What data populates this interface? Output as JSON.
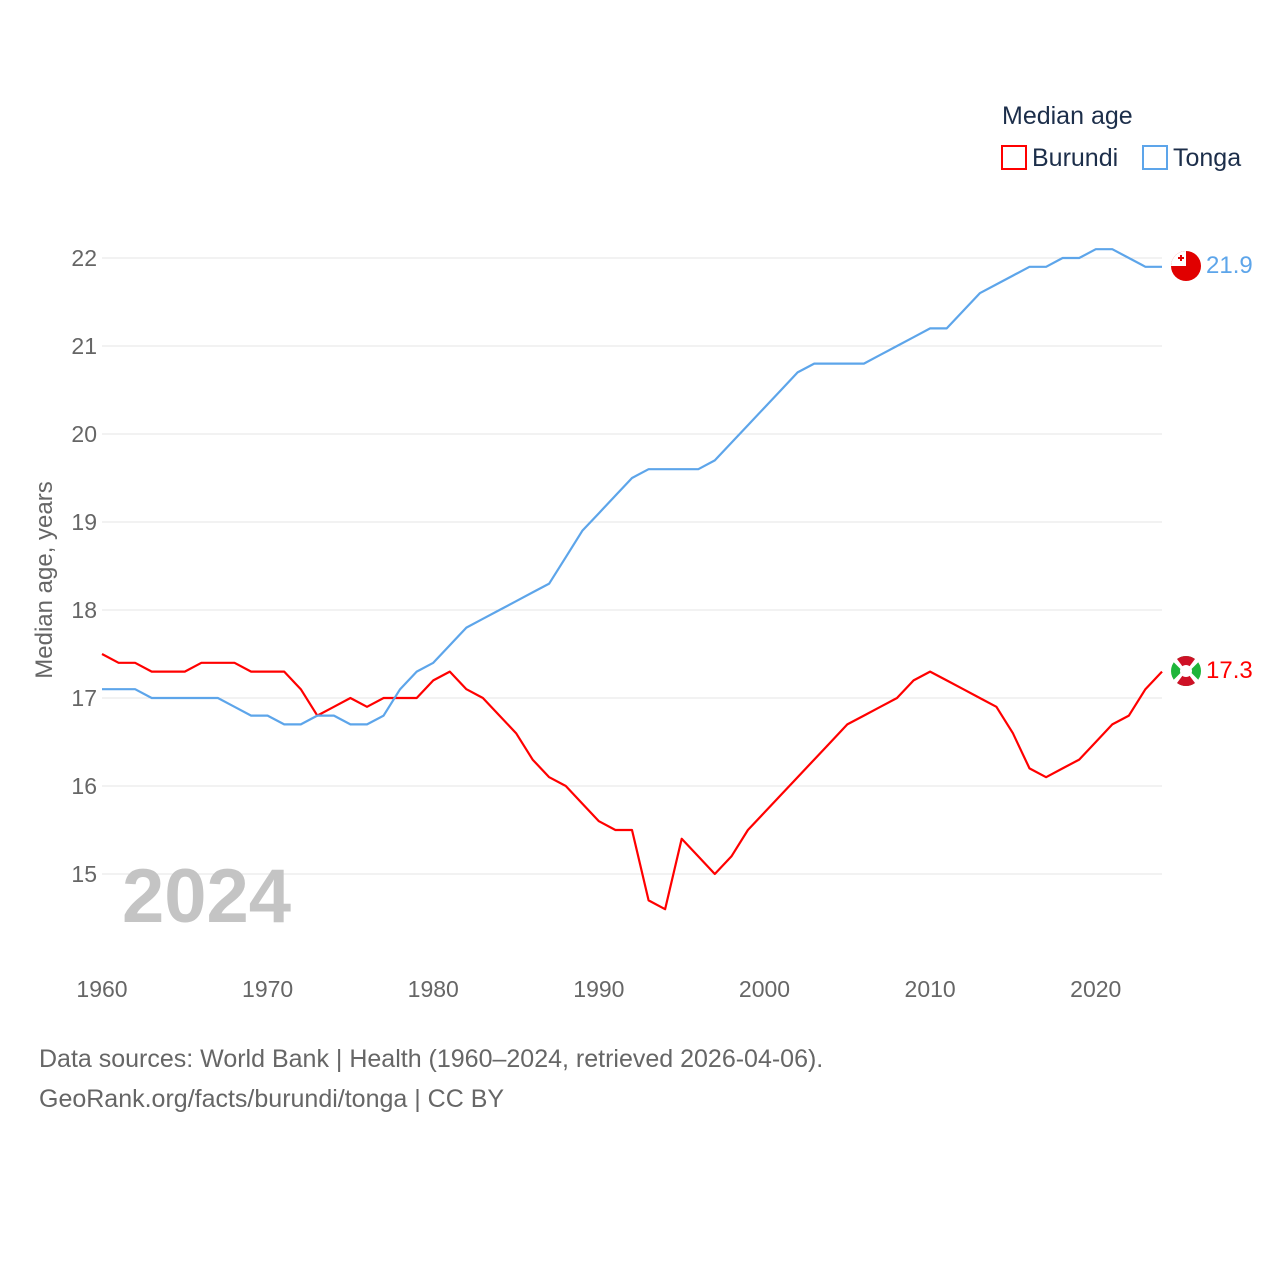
{
  "chart_data": {
    "type": "line",
    "title": "",
    "watermark_year": "2024",
    "xlabel": "",
    "ylabel": "Median age, years",
    "xlim": [
      1960,
      2024
    ],
    "ylim": [
      14.2,
      22.5
    ],
    "x_ticks": [
      1960,
      1970,
      1980,
      1990,
      2000,
      2010,
      2020
    ],
    "y_ticks": [
      15,
      16,
      17,
      18,
      19,
      20,
      21,
      22
    ],
    "grid": true,
    "legend": {
      "title": "Median age",
      "placement": "top-right"
    },
    "x": [
      1960,
      1961,
      1962,
      1963,
      1964,
      1965,
      1966,
      1967,
      1968,
      1969,
      1970,
      1971,
      1972,
      1973,
      1974,
      1975,
      1976,
      1977,
      1978,
      1979,
      1980,
      1981,
      1982,
      1983,
      1984,
      1985,
      1986,
      1987,
      1988,
      1989,
      1990,
      1991,
      1992,
      1993,
      1994,
      1995,
      1996,
      1997,
      1998,
      1999,
      2000,
      2001,
      2002,
      2003,
      2004,
      2005,
      2006,
      2007,
      2008,
      2009,
      2010,
      2011,
      2012,
      2013,
      2014,
      2015,
      2016,
      2017,
      2018,
      2019,
      2020,
      2021,
      2022,
      2023,
      2024
    ],
    "series": [
      {
        "name": "Burundi",
        "color": "#ff0000",
        "end_label": "17.3",
        "values": [
          17.5,
          17.4,
          17.4,
          17.3,
          17.3,
          17.3,
          17.4,
          17.4,
          17.4,
          17.3,
          17.3,
          17.3,
          17.1,
          16.8,
          16.9,
          17.0,
          16.9,
          17.0,
          17.0,
          17.0,
          17.2,
          17.3,
          17.1,
          17.0,
          16.8,
          16.6,
          16.3,
          16.1,
          16.0,
          15.8,
          15.6,
          15.5,
          15.5,
          14.7,
          14.6,
          15.4,
          15.2,
          15.0,
          15.2,
          15.5,
          15.7,
          15.9,
          16.1,
          16.3,
          16.5,
          16.7,
          16.8,
          16.9,
          17.0,
          17.2,
          17.3,
          17.2,
          17.1,
          17.0,
          16.9,
          16.6,
          16.2,
          16.1,
          16.2,
          16.3,
          16.5,
          16.7,
          16.8,
          17.1,
          17.3
        ]
      },
      {
        "name": "Tonga",
        "color": "#5da5ea",
        "end_label": "21.9",
        "values": [
          17.1,
          17.1,
          17.1,
          17.0,
          17.0,
          17.0,
          17.0,
          17.0,
          16.9,
          16.8,
          16.8,
          16.7,
          16.7,
          16.8,
          16.8,
          16.7,
          16.7,
          16.8,
          17.1,
          17.3,
          17.4,
          17.6,
          17.8,
          17.9,
          18.0,
          18.1,
          18.2,
          18.3,
          18.6,
          18.9,
          19.1,
          19.3,
          19.5,
          19.6,
          19.6,
          19.6,
          19.6,
          19.7,
          19.9,
          20.1,
          20.3,
          20.5,
          20.7,
          20.8,
          20.8,
          20.8,
          20.8,
          20.9,
          21.0,
          21.1,
          21.2,
          21.2,
          21.4,
          21.6,
          21.7,
          21.8,
          21.9,
          21.9,
          22.0,
          22.0,
          22.1,
          22.1,
          22.0,
          21.9,
          21.9
        ]
      }
    ]
  },
  "footer": {
    "line1": "Data sources: World Bank | Health (1960–2024, retrieved 2026-04-06).",
    "line2": "GeoRank.org/facts/burundi/tonga | CC BY"
  }
}
